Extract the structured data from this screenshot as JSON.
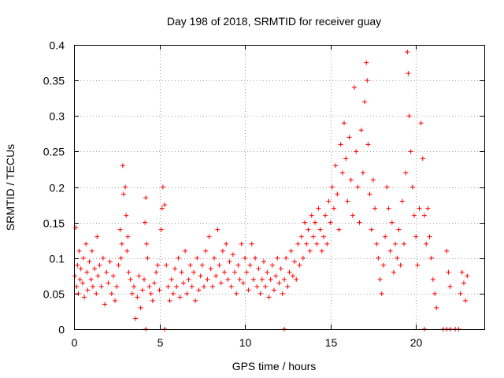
{
  "chart_data": {
    "type": "scatter",
    "title": "Day 198 of 2018, SRMTID for receiver guay",
    "xlabel": "GPS time / hours",
    "ylabel": "SRMTID / TECUs",
    "xlim": [
      0,
      24
    ],
    "ylim": [
      0,
      0.4
    ],
    "xticks": [
      0,
      5,
      10,
      15,
      20
    ],
    "xtick_labels": [
      "0",
      "5",
      "10",
      "15",
      "20"
    ],
    "yticks": [
      0,
      0.05,
      0.1,
      0.15,
      0.2,
      0.25,
      0.3,
      0.35,
      0.4
    ],
    "ytick_labels": [
      "0",
      "0.05",
      "0.1",
      "0.15",
      "0.2",
      "0.25",
      "0.3",
      "0.35",
      "0.4"
    ],
    "grid": true,
    "marker": "+",
    "color": "#ff0000",
    "series": [
      {
        "name": "SRMTID",
        "points": [
          [
            0.05,
            0.075
          ],
          [
            0.1,
            0.143
          ],
          [
            0.15,
            0.06
          ],
          [
            0.2,
            0.09
          ],
          [
            0.25,
            0.05
          ],
          [
            0.3,
            0.11
          ],
          [
            0.35,
            0.07
          ],
          [
            0.4,
            0.085
          ],
          [
            0.5,
            0.065
          ],
          [
            0.55,
            0.1
          ],
          [
            0.6,
            0.045
          ],
          [
            0.7,
            0.12
          ],
          [
            0.75,
            0.08
          ],
          [
            0.8,
            0.055
          ],
          [
            0.9,
            0.095
          ],
          [
            1.0,
            0.07
          ],
          [
            1.05,
            0.11
          ],
          [
            1.1,
            0.06
          ],
          [
            1.2,
            0.085
          ],
          [
            1.3,
            0.05
          ],
          [
            1.35,
            0.13
          ],
          [
            1.4,
            0.075
          ],
          [
            1.5,
            0.09
          ],
          [
            1.6,
            0.06
          ],
          [
            1.7,
            0.1
          ],
          [
            1.8,
            0.035
          ],
          [
            1.9,
            0.08
          ],
          [
            2.0,
            0.065
          ],
          [
            2.1,
            0.095
          ],
          [
            2.2,
            0.05
          ],
          [
            2.3,
            0.075
          ],
          [
            2.4,
            0.04
          ],
          [
            2.5,
            0.06
          ],
          [
            2.6,
            0.09
          ],
          [
            2.7,
            0.14
          ],
          [
            2.75,
            0.1
          ],
          [
            2.8,
            0.12
          ],
          [
            2.85,
            0.23
          ],
          [
            2.9,
            0.19
          ],
          [
            3.0,
            0.2
          ],
          [
            3.05,
            0.16
          ],
          [
            3.1,
            0.11
          ],
          [
            3.15,
            0.13
          ],
          [
            3.2,
            0.08
          ],
          [
            3.3,
            0.07
          ],
          [
            3.4,
            0.05
          ],
          [
            3.5,
            0.06
          ],
          [
            3.6,
            0.015
          ],
          [
            3.7,
            0.045
          ],
          [
            3.8,
            0.075
          ],
          [
            3.9,
            0.03
          ],
          [
            4.0,
            0.055
          ],
          [
            4.1,
            0.07
          ],
          [
            4.15,
            0.15
          ],
          [
            4.2,
            0.185
          ],
          [
            4.25,
            0.12
          ],
          [
            4.3,
            0.1
          ],
          [
            4.4,
            0.06
          ],
          [
            4.5,
            0.05
          ],
          [
            4.6,
            0.04
          ],
          [
            4.7,
            0.065
          ],
          [
            4.8,
            0.08
          ],
          [
            4.9,
            0.09
          ],
          [
            5.0,
            0.055
          ],
          [
            5.1,
            0.14
          ],
          [
            5.15,
            0.17
          ],
          [
            5.2,
            0.2
          ],
          [
            5.3,
            0.175
          ],
          [
            5.4,
            0.09
          ],
          [
            5.5,
            0.06
          ],
          [
            5.6,
            0.04
          ],
          [
            5.7,
            0.07
          ],
          [
            5.8,
            0.05
          ],
          [
            5.9,
            0.085
          ],
          [
            6.0,
            0.06
          ],
          [
            6.1,
            0.1
          ],
          [
            6.2,
            0.045
          ],
          [
            6.3,
            0.08
          ],
          [
            6.4,
            0.065
          ],
          [
            6.5,
            0.11
          ],
          [
            6.6,
            0.05
          ],
          [
            6.7,
            0.07
          ],
          [
            6.8,
            0.09
          ],
          [
            6.9,
            0.06
          ],
          [
            7.0,
            0.08
          ],
          [
            7.1,
            0.04
          ],
          [
            7.2,
            0.1
          ],
          [
            7.3,
            0.055
          ],
          [
            7.4,
            0.075
          ],
          [
            7.5,
            0.09
          ],
          [
            7.6,
            0.06
          ],
          [
            7.7,
            0.11
          ],
          [
            7.8,
            0.07
          ],
          [
            7.9,
            0.13
          ],
          [
            8.0,
            0.085
          ],
          [
            8.1,
            0.06
          ],
          [
            8.2,
            0.1
          ],
          [
            8.3,
            0.075
          ],
          [
            8.4,
            0.14
          ],
          [
            8.5,
            0.09
          ],
          [
            8.6,
            0.065
          ],
          [
            8.7,
            0.11
          ],
          [
            8.8,
            0.08
          ],
          [
            8.9,
            0.12
          ],
          [
            9.0,
            0.07
          ],
          [
            9.1,
            0.095
          ],
          [
            9.2,
            0.06
          ],
          [
            9.3,
            0.105
          ],
          [
            9.4,
            0.08
          ],
          [
            9.5,
            0.05
          ],
          [
            9.6,
            0.09
          ],
          [
            9.7,
            0.07
          ],
          [
            9.8,
            0.12
          ],
          [
            9.9,
            0.065
          ],
          [
            10.0,
            0.1
          ],
          [
            10.1,
            0.08
          ],
          [
            10.2,
            0.055
          ],
          [
            10.3,
            0.09
          ],
          [
            10.4,
            0.12
          ],
          [
            10.5,
            0.07
          ],
          [
            10.6,
            0.1
          ],
          [
            10.7,
            0.06
          ],
          [
            10.8,
            0.085
          ],
          [
            10.9,
            0.05
          ],
          [
            11.0,
            0.07
          ],
          [
            11.1,
            0.095
          ],
          [
            11.2,
            0.06
          ],
          [
            11.3,
            0.08
          ],
          [
            11.4,
            0.045
          ],
          [
            11.5,
            0.07
          ],
          [
            11.6,
            0.09
          ],
          [
            11.7,
            0.055
          ],
          [
            11.8,
            0.075
          ],
          [
            11.9,
            0.1
          ],
          [
            12.0,
            0.065
          ],
          [
            12.1,
            0.085
          ],
          [
            12.2,
            0.05
          ],
          [
            12.3,
            0.07
          ],
          [
            12.4,
            0.1
          ],
          [
            12.5,
            0.06
          ],
          [
            12.6,
            0.08
          ],
          [
            12.7,
            0.11
          ],
          [
            12.8,
            0.075
          ],
          [
            12.9,
            0.095
          ],
          [
            13.0,
            0.07
          ],
          [
            13.1,
            0.12
          ],
          [
            13.2,
            0.09
          ],
          [
            13.3,
            0.13
          ],
          [
            13.4,
            0.1
          ],
          [
            13.5,
            0.15
          ],
          [
            13.6,
            0.12
          ],
          [
            13.7,
            0.14
          ],
          [
            13.8,
            0.11
          ],
          [
            13.9,
            0.16
          ],
          [
            14.0,
            0.13
          ],
          [
            14.1,
            0.15
          ],
          [
            14.2,
            0.12
          ],
          [
            14.3,
            0.17
          ],
          [
            14.4,
            0.14
          ],
          [
            14.5,
            0.11
          ],
          [
            14.6,
            0.13
          ],
          [
            14.7,
            0.16
          ],
          [
            14.8,
            0.12
          ],
          [
            14.9,
            0.18
          ],
          [
            15.0,
            0.15
          ],
          [
            15.1,
            0.2
          ],
          [
            15.2,
            0.17
          ],
          [
            15.3,
            0.23
          ],
          [
            15.4,
            0.19
          ],
          [
            15.5,
            0.14
          ],
          [
            15.6,
            0.26
          ],
          [
            15.7,
            0.22
          ],
          [
            15.8,
            0.29
          ],
          [
            15.9,
            0.24
          ],
          [
            16.0,
            0.18
          ],
          [
            16.1,
            0.27
          ],
          [
            16.2,
            0.21
          ],
          [
            16.3,
            0.16
          ],
          [
            16.4,
            0.34
          ],
          [
            16.5,
            0.25
          ],
          [
            16.6,
            0.2
          ],
          [
            16.7,
            0.15
          ],
          [
            16.8,
            0.28
          ],
          [
            16.9,
            0.22
          ],
          [
            17.0,
            0.32
          ],
          [
            17.1,
            0.375
          ],
          [
            17.15,
            0.35
          ],
          [
            17.2,
            0.26
          ],
          [
            17.3,
            0.19
          ],
          [
            17.4,
            0.14
          ],
          [
            17.5,
            0.21
          ],
          [
            17.6,
            0.17
          ],
          [
            17.7,
            0.12
          ],
          [
            17.8,
            0.1
          ],
          [
            17.9,
            0.07
          ],
          [
            18.0,
            0.05
          ],
          [
            18.1,
            0.09
          ],
          [
            18.2,
            0.13
          ],
          [
            18.3,
            0.2
          ],
          [
            18.4,
            0.17
          ],
          [
            18.5,
            0.11
          ],
          [
            18.6,
            0.15
          ],
          [
            18.7,
            0.08
          ],
          [
            18.8,
            0.12
          ],
          [
            18.9,
            0.1
          ],
          [
            19.0,
            0.14
          ],
          [
            19.1,
            0.09
          ],
          [
            19.2,
            0.18
          ],
          [
            19.3,
            0.12
          ],
          [
            19.4,
            0.22
          ],
          [
            19.5,
            0.39
          ],
          [
            19.55,
            0.36
          ],
          [
            19.6,
            0.3
          ],
          [
            19.7,
            0.25
          ],
          [
            19.8,
            0.2
          ],
          [
            19.9,
            0.16
          ],
          [
            20.0,
            0.13
          ],
          [
            20.1,
            0.09
          ],
          [
            20.2,
            0.17
          ],
          [
            20.3,
            0.29
          ],
          [
            20.4,
            0.24
          ],
          [
            20.5,
            0.16
          ],
          [
            20.6,
            0.12
          ],
          [
            20.7,
            0.17
          ],
          [
            20.8,
            0.13
          ],
          [
            20.9,
            0.1
          ],
          [
            21.0,
            0.07
          ],
          [
            21.1,
            0.05
          ],
          [
            21.2,
            0.03
          ],
          [
            21.8,
            0.11
          ],
          [
            21.9,
            0.08
          ],
          [
            22.0,
            0.06
          ],
          [
            22.6,
            0.05
          ],
          [
            22.7,
            0.08
          ],
          [
            22.8,
            0.065
          ],
          [
            22.9,
            0.04
          ],
          [
            23.0,
            0.075
          ],
          [
            4.2,
            0.0
          ],
          [
            5.3,
            0.0
          ],
          [
            12.3,
            0.0
          ],
          [
            20.5,
            0.0
          ],
          [
            21.6,
            0.0
          ],
          [
            21.8,
            0.0
          ],
          [
            22.0,
            0.0
          ],
          [
            22.3,
            0.0
          ],
          [
            22.5,
            0.0
          ]
        ]
      }
    ]
  }
}
